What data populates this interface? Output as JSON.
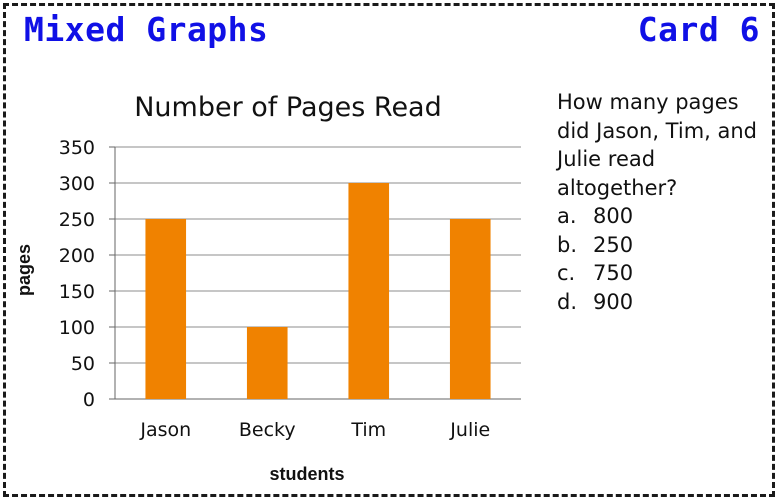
{
  "header": {
    "left_title": "Mixed Graphs",
    "right_title": "Card 6"
  },
  "question": {
    "text": "How many pages did Jason, Tim, and Julie read altogether?",
    "options": [
      {
        "letter": "a.",
        "value": "800"
      },
      {
        "letter": "b.",
        "value": "250"
      },
      {
        "letter": "c.",
        "value": "750"
      },
      {
        "letter": "d.",
        "value": "900"
      }
    ]
  },
  "colors": {
    "bar": "#f08200",
    "heading": "#1010e6",
    "grid": "#8c8c8c"
  },
  "chart_data": {
    "type": "bar",
    "title": "Number of Pages Read",
    "xlabel": "students",
    "ylabel": "pages",
    "categories": [
      "Jason",
      "Becky",
      "Tim",
      "Julie"
    ],
    "values": [
      250,
      100,
      300,
      250
    ],
    "ylim": [
      0,
      350
    ],
    "yticks": [
      "0",
      "50",
      "100",
      "150",
      "200",
      "250",
      "300",
      "350"
    ],
    "grid": true,
    "legend": "none"
  }
}
